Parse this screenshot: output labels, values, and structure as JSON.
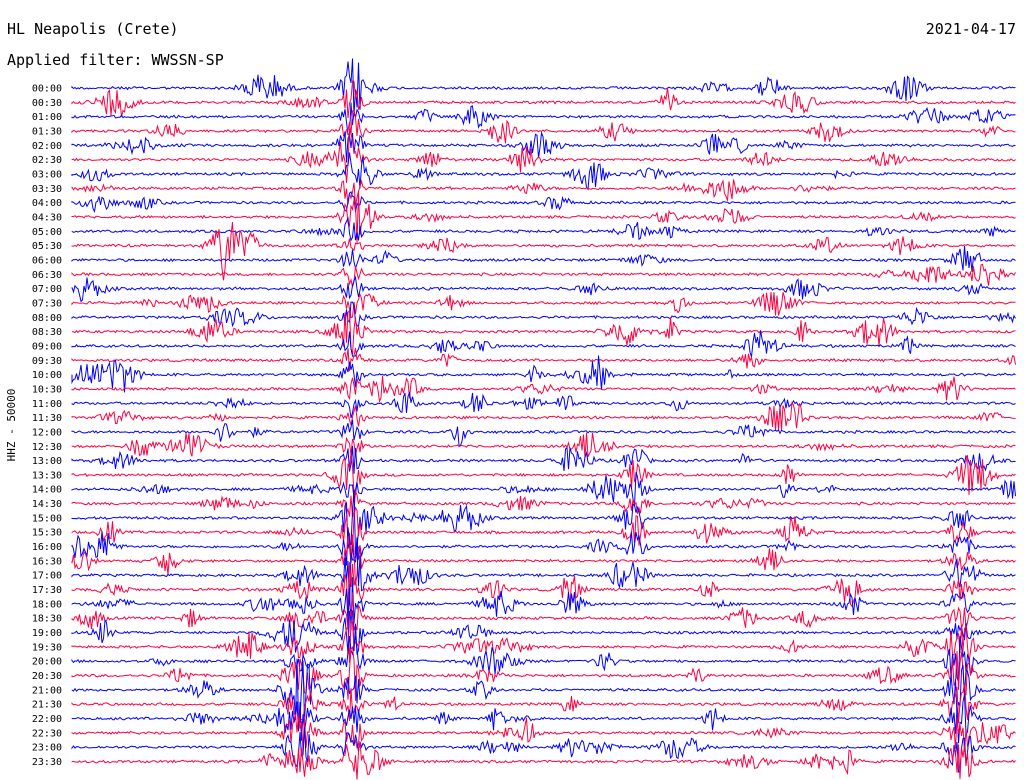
{
  "header": {
    "station": "HL Neapolis (Crete)",
    "filter": "Applied filter: WWSSN-SP",
    "date": "2021-04-17"
  },
  "chart_data": {
    "type": "line",
    "title": "HL Neapolis (Crete)",
    "subtitle": "Applied filter: WWSSN-SP",
    "date": "2021-04-17",
    "ylabel": "HHZ - 50000",
    "xlabel": "",
    "row_labels": [
      "00:00",
      "00:30",
      "01:00",
      "01:30",
      "02:00",
      "02:30",
      "03:00",
      "03:30",
      "04:00",
      "04:30",
      "05:00",
      "05:30",
      "06:00",
      "06:30",
      "07:00",
      "07:30",
      "08:00",
      "08:30",
      "09:00",
      "09:30",
      "10:00",
      "10:30",
      "11:00",
      "11:30",
      "12:00",
      "12:30",
      "13:00",
      "13:30",
      "14:00",
      "14:30",
      "15:00",
      "15:30",
      "16:00",
      "16:30",
      "17:00",
      "17:30",
      "18:00",
      "18:30",
      "19:00",
      "19:30",
      "20:00",
      "20:30",
      "21:00",
      "21:30",
      "22:00",
      "22:30",
      "23:00",
      "23:30"
    ],
    "series_colors": [
      "#0000ff",
      "#ff0040"
    ],
    "grid": false,
    "legend": "none"
  }
}
